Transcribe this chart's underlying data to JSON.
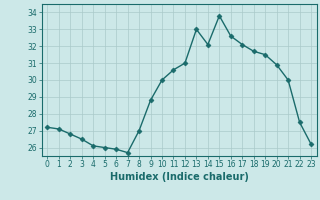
{
  "x": [
    0,
    1,
    2,
    3,
    4,
    5,
    6,
    7,
    8,
    9,
    10,
    11,
    12,
    13,
    14,
    15,
    16,
    17,
    18,
    19,
    20,
    21,
    22,
    23
  ],
  "y": [
    27.2,
    27.1,
    26.8,
    26.5,
    26.1,
    26.0,
    25.9,
    25.7,
    27.0,
    28.8,
    30.0,
    30.6,
    31.0,
    33.0,
    32.1,
    33.8,
    32.6,
    32.1,
    31.7,
    31.5,
    30.9,
    30.0,
    27.5,
    26.2
  ],
  "line_color": "#1a6b6b",
  "marker": "D",
  "markersize": 2.5,
  "linewidth": 1.0,
  "bg_color": "#cce8e8",
  "grid_color": "#aacaca",
  "xlabel": "Humidex (Indice chaleur)",
  "xlim": [
    -0.5,
    23.5
  ],
  "ylim": [
    25.5,
    34.5
  ],
  "yticks": [
    26,
    27,
    28,
    29,
    30,
    31,
    32,
    33,
    34
  ],
  "xticks": [
    0,
    1,
    2,
    3,
    4,
    5,
    6,
    7,
    8,
    9,
    10,
    11,
    12,
    13,
    14,
    15,
    16,
    17,
    18,
    19,
    20,
    21,
    22,
    23
  ],
  "tick_color": "#1a6b6b",
  "xlabel_fontsize": 7,
  "tick_fontsize": 5.5
}
